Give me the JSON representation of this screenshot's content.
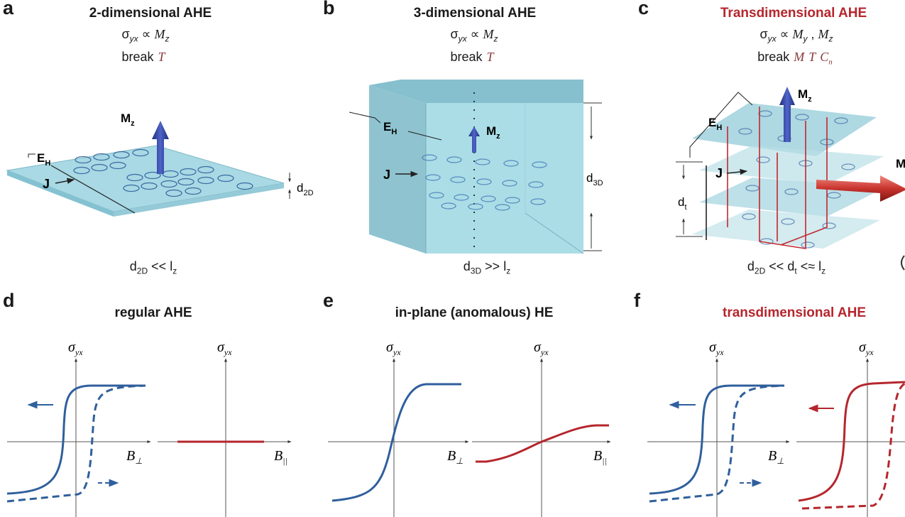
{
  "panels": {
    "a": {
      "letter": "a",
      "title": "2-dimensional AHE",
      "formula_lhs": "σ",
      "formula_sub": "yx",
      "formula_rel": "∝",
      "formula_rhs": "M",
      "formula_rhs_sub": "z",
      "break_label": "break",
      "break_symbols": "T",
      "mag_label": "M",
      "mag_sub": "z",
      "eh_label": "E",
      "eh_sub": "H",
      "j_label": "J",
      "thickness_label": "d",
      "thickness_sub": "2D",
      "condition_lhs": "d",
      "condition_lhs_sub": "2D",
      "condition_rel": "<<",
      "condition_rhs": "l",
      "condition_rhs_sub": "z"
    },
    "b": {
      "letter": "b",
      "title": "3-dimensional AHE",
      "formula_lhs": "σ",
      "formula_sub": "yx",
      "formula_rel": "∝",
      "formula_rhs": "M",
      "formula_rhs_sub": "z",
      "break_label": "break",
      "break_symbols": "T",
      "mag_label": "M",
      "mag_sub": "z",
      "eh_label": "E",
      "eh_sub": "H",
      "j_label": "J",
      "thickness_label": "d",
      "thickness_sub": "3D",
      "condition_lhs": "d",
      "condition_lhs_sub": "3D",
      "condition_rel": ">>",
      "condition_rhs": "l",
      "condition_rhs_sub": "z"
    },
    "c": {
      "letter": "c",
      "title": "Transdimensional AHE",
      "formula_lhs": "σ",
      "formula_sub": "yx",
      "formula_rel": "∝",
      "formula_rhs": "M",
      "formula_rhs_sub": "y",
      "formula_rhs2": "M",
      "formula_rhs2_sub": "z",
      "break_label": "break",
      "break_sym1": "M",
      "break_sym2": "T",
      "break_sym3": "C",
      "break_sym3_sub": "n",
      "mag_label": "M",
      "mag_sub": "z",
      "eh_label": "E",
      "eh_sub": "H",
      "j_label": "J",
      "thickness_label": "d",
      "thickness_sub": "t",
      "side_mag_label": "M",
      "condition_lhs": "d",
      "condition_lhs_sub": "2D",
      "condition_rel1": "<<",
      "condition_mid": "d",
      "condition_mid_sub": "t",
      "condition_rel2": "<≈",
      "condition_rhs": "l",
      "condition_rhs_sub": "z"
    },
    "d": {
      "letter": "d",
      "title": "regular AHE",
      "y_label": "σ",
      "y_sub": "yx",
      "x_label_left": "B",
      "x_sub_left": "⊥",
      "x_label_right": "B",
      "x_sub_right": "||"
    },
    "e": {
      "letter": "e",
      "title": "in-plane (anomalous) HE",
      "y_label": "σ",
      "y_sub": "yx",
      "x_label_left": "B",
      "x_sub_left": "⊥",
      "x_label_right": "B",
      "x_sub_right": "||"
    },
    "f": {
      "letter": "f",
      "title": "transdimensional AHE",
      "y_label": "σ",
      "y_sub": "yx",
      "x_label_left": "B",
      "x_sub_left": "⊥"
    }
  },
  "colors": {
    "blue_curve": "#2f5f9c",
    "red_curve": "#b5262d",
    "slab": "#9fd3e0",
    "arrow_blue": "#2f3f9a",
    "loop_line": "#c0282e",
    "text": "#1a1a1a"
  }
}
